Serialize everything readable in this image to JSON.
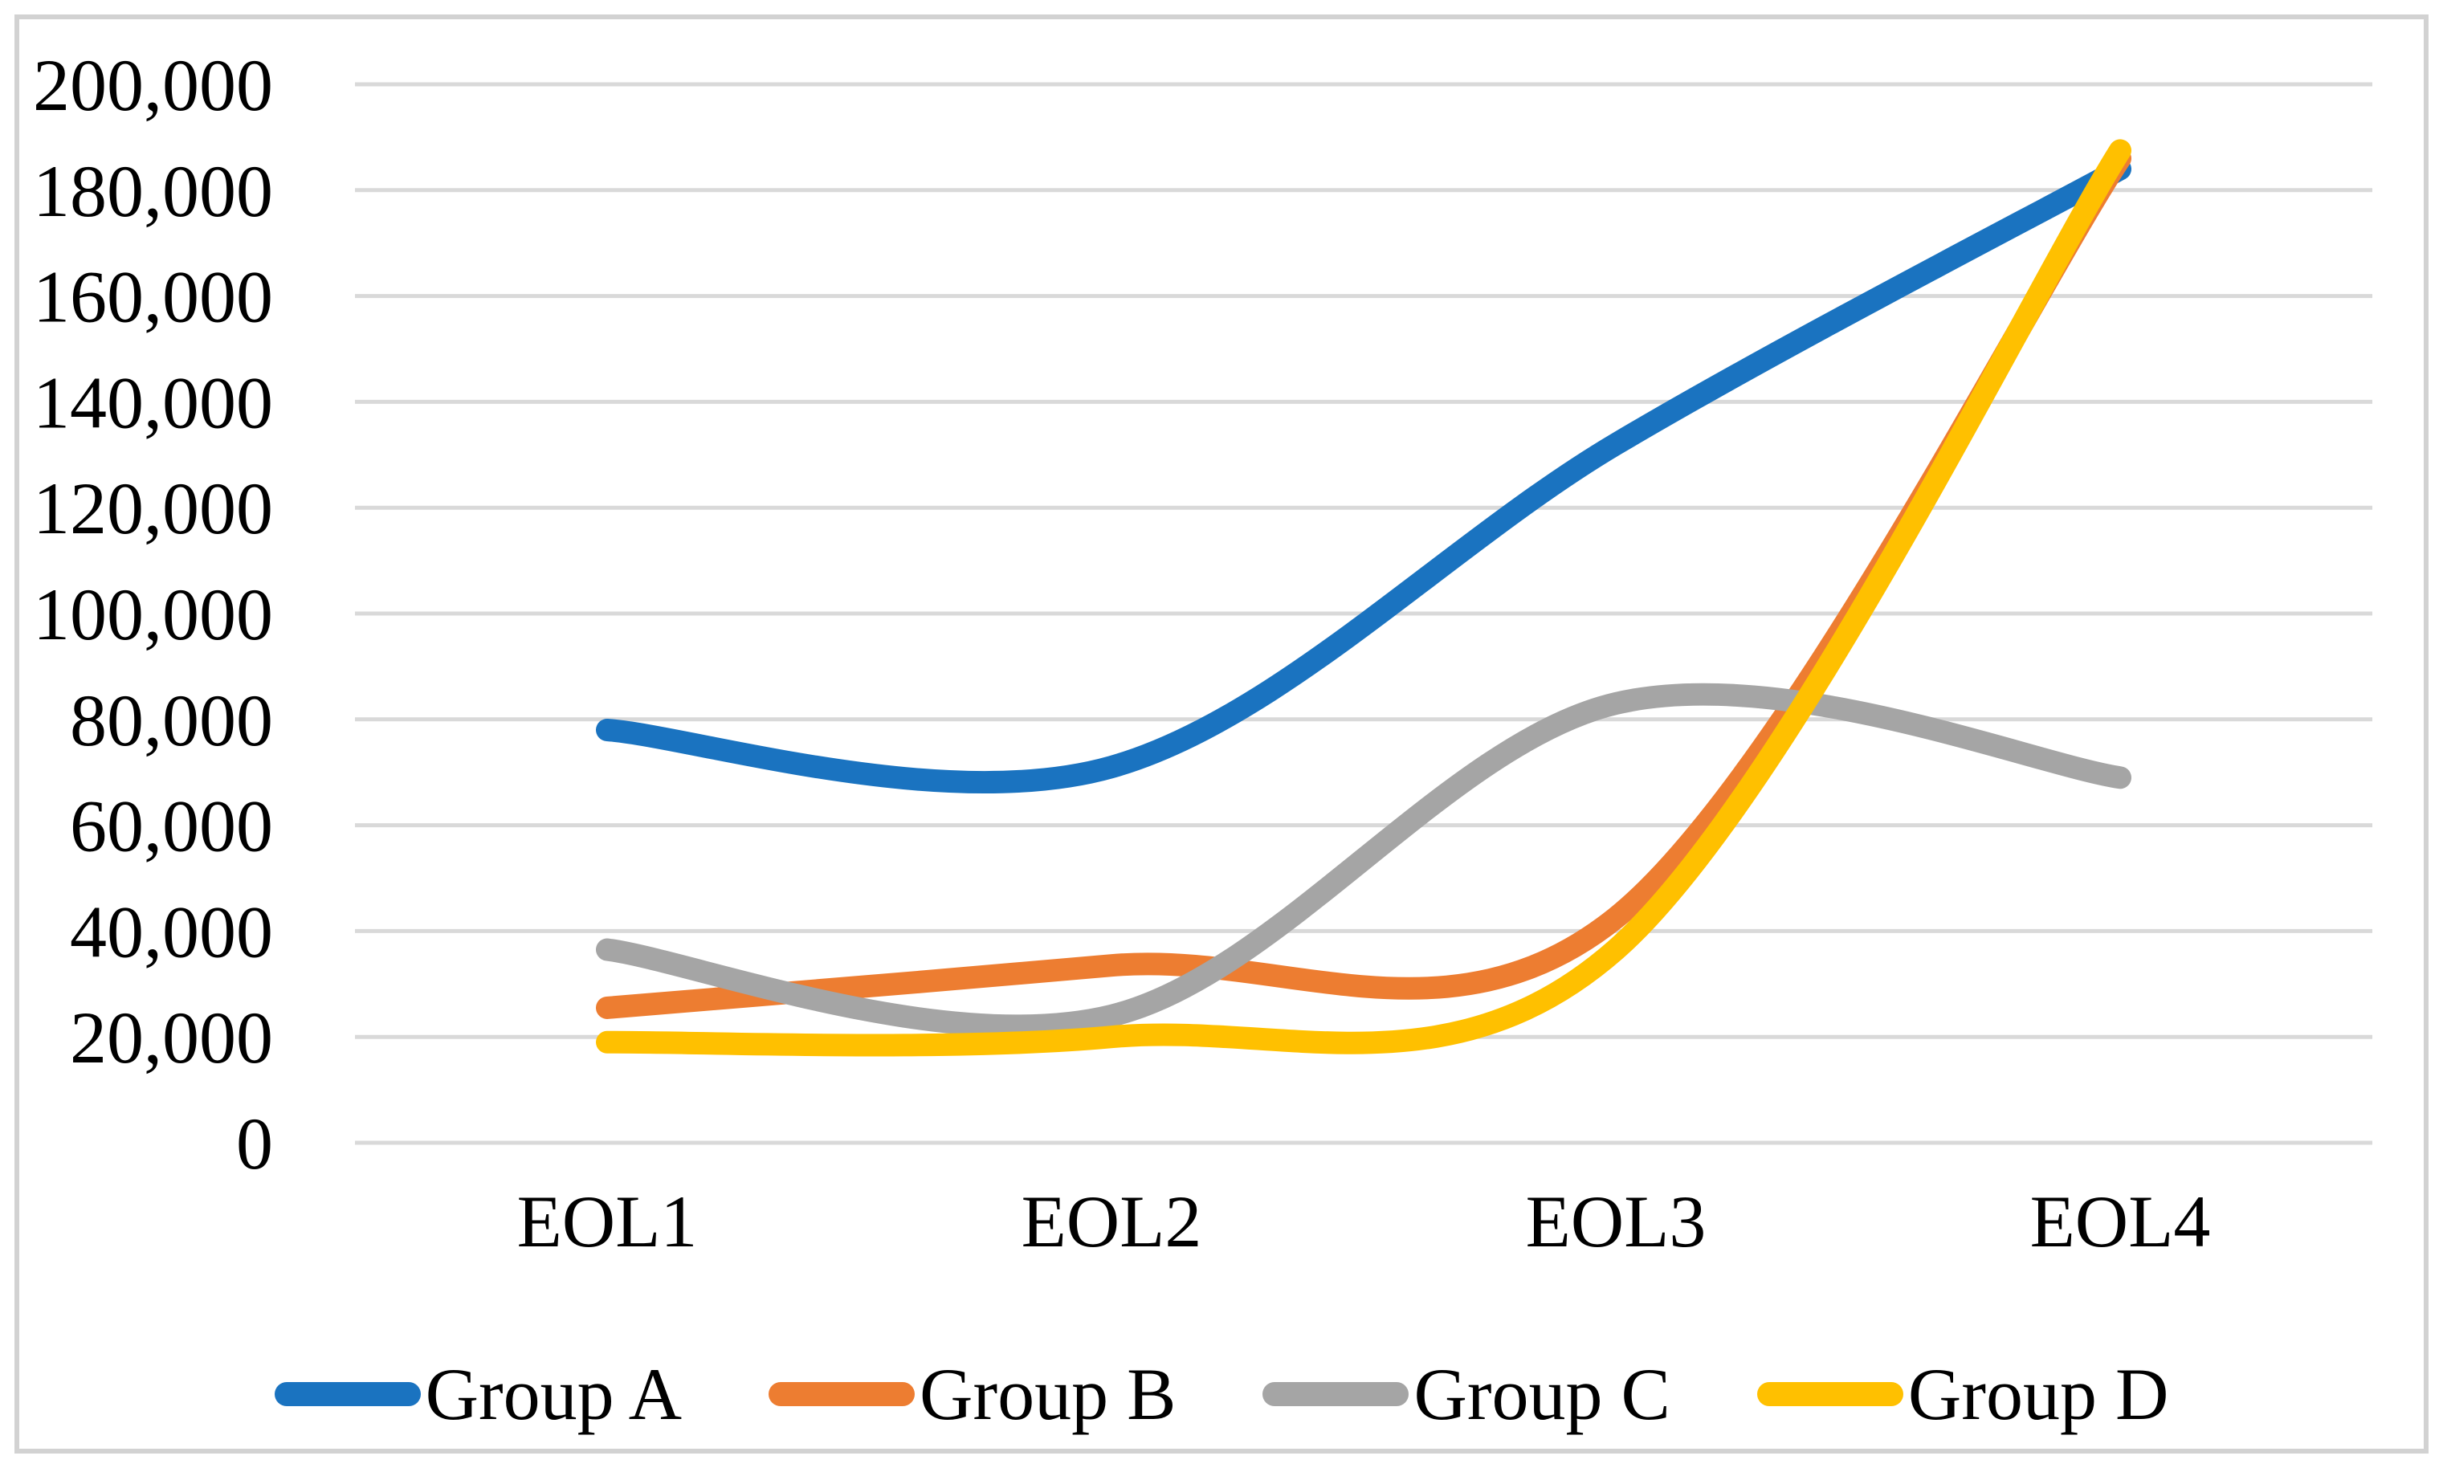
{
  "figure": {
    "background_color": "#FFFFFF",
    "border_color": "#D2D2D2",
    "gridline_color": "#D9D9D9"
  },
  "chart_data": {
    "type": "line",
    "smoothed": true,
    "title": "",
    "xlabel": "",
    "ylabel": "",
    "categories": [
      "EOL1",
      "EOL2",
      "EOL3",
      "EOL4"
    ],
    "series": [
      {
        "name": "Group A",
        "color": "#1A73C0",
        "values": [
          78000,
          71000,
          132000,
          184000
        ]
      },
      {
        "name": "Group B",
        "color": "#ED7D31",
        "values": [
          25500,
          33500,
          42500,
          186000
        ]
      },
      {
        "name": "Group C",
        "color": "#A5A5A5",
        "values": [
          36500,
          24000,
          83000,
          69000
        ]
      },
      {
        "name": "Group D",
        "color": "#FFC000",
        "values": [
          19000,
          20000,
          36500,
          187500
        ]
      }
    ],
    "yAxis": {
      "min": 0,
      "max": 200000,
      "step": 20000,
      "tick_labels": [
        "0",
        "20,000",
        "40,000",
        "60,000",
        "80,000",
        "100,000",
        "120,000",
        "140,000",
        "160,000",
        "180,000",
        "200,000"
      ]
    },
    "grid": true,
    "legend_position": "bottom"
  }
}
